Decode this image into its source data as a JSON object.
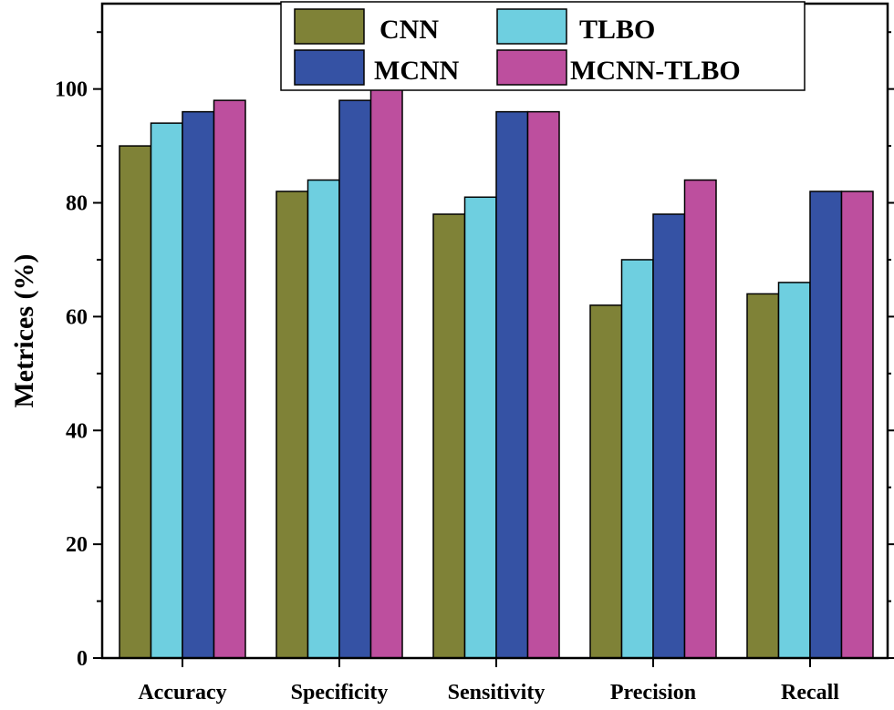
{
  "chart_data": {
    "type": "bar",
    "title": "",
    "xlabel": "",
    "ylabel": "Metrices (%)",
    "ylim": [
      0,
      115
    ],
    "yticks": [
      0,
      20,
      40,
      60,
      80,
      100
    ],
    "ytick_labels": [
      "0",
      "20",
      "40",
      "60",
      "80",
      "100"
    ],
    "categories": [
      "Accuracy",
      "Specificity",
      "Sensitivity",
      "Precision",
      "Recall"
    ],
    "series": [
      {
        "name": "CNN",
        "color": "#7f8237",
        "values": [
          90,
          82,
          78,
          62,
          64
        ]
      },
      {
        "name": "TLBO",
        "color": "#6ecfe0",
        "values": [
          94,
          84,
          81,
          70,
          66
        ]
      },
      {
        "name": "MCNN",
        "color": "#3552a4",
        "values": [
          96,
          98,
          96,
          78,
          82
        ]
      },
      {
        "name": "MCNN-TLBO",
        "color": "#bd4f9e",
        "values": [
          98,
          100,
          96,
          84,
          82
        ]
      }
    ],
    "legend_position": "top-center",
    "grid": false
  }
}
